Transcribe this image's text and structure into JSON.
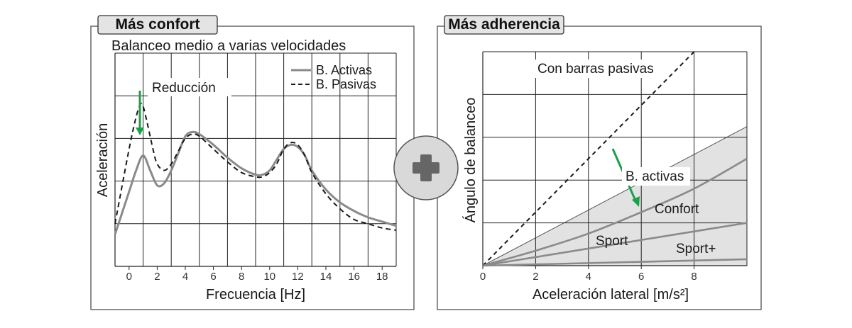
{
  "chart_data": [
    {
      "type": "line",
      "panel_title": "Más confort",
      "title": "Balanceo medio a varias velocidades",
      "xlabel": "Frecuencia [Hz]",
      "ylabel": "Aceleración",
      "xlim": [
        -1,
        19
      ],
      "xticks": [
        "0",
        "2",
        "4",
        "6",
        "8",
        "10",
        "12",
        "14",
        "16",
        "18"
      ],
      "legend": [
        "B. Activas",
        "B. Pasivas"
      ],
      "legend_position": "top-right",
      "annotation": "Reducción",
      "grid": true,
      "series": [
        {
          "name": "B. Activas",
          "color": "#8a8a8a",
          "style": "solid",
          "x": [
            -1,
            0,
            0.5,
            1,
            1.5,
            2,
            2.5,
            3,
            3.5,
            4,
            4.5,
            5,
            6,
            7,
            8,
            9,
            9.5,
            10,
            10.5,
            11,
            11.5,
            12,
            12.5,
            13,
            14,
            15,
            16,
            17,
            18,
            19
          ],
          "y": [
            0.15,
            0.35,
            0.45,
            0.52,
            0.45,
            0.38,
            0.39,
            0.45,
            0.53,
            0.61,
            0.63,
            0.62,
            0.57,
            0.51,
            0.46,
            0.43,
            0.43,
            0.45,
            0.5,
            0.55,
            0.57,
            0.56,
            0.52,
            0.45,
            0.36,
            0.3,
            0.26,
            0.23,
            0.21,
            0.19
          ]
        },
        {
          "name": "B. Pasivas",
          "color": "#1a1a1a",
          "style": "dashed",
          "x": [
            -1,
            0,
            0.5,
            0.8,
            1,
            1.3,
            1.7,
            2,
            2.5,
            3,
            3.5,
            4,
            4.5,
            5,
            6,
            7,
            8,
            9,
            9.5,
            10,
            10.5,
            11,
            11.5,
            12,
            12.5,
            13,
            14,
            15,
            16,
            17,
            18,
            19
          ],
          "y": [
            0.2,
            0.55,
            0.7,
            0.76,
            0.75,
            0.67,
            0.55,
            0.48,
            0.45,
            0.48,
            0.54,
            0.6,
            0.62,
            0.61,
            0.55,
            0.49,
            0.44,
            0.42,
            0.42,
            0.44,
            0.48,
            0.55,
            0.58,
            0.57,
            0.52,
            0.44,
            0.34,
            0.27,
            0.22,
            0.2,
            0.18,
            0.17
          ]
        }
      ]
    },
    {
      "type": "line",
      "panel_title": "Más adherencia",
      "xlabel": "Aceleración lateral [m/s²]",
      "ylabel": "Ángulo de balanceo",
      "xlim": [
        0,
        10
      ],
      "xticks": [
        "0",
        "2",
        "4",
        "6",
        "8"
      ],
      "grid": true,
      "region_label": "B. activas",
      "series": [
        {
          "name": "Con barras pasivas",
          "color": "#1a1a1a",
          "style": "dashed",
          "x": [
            0,
            8
          ],
          "y": [
            0,
            1.0
          ]
        },
        {
          "name": "Confort",
          "color": "#8a8a8a",
          "style": "solid",
          "x": [
            0,
            2,
            4,
            6,
            8,
            10
          ],
          "y": [
            0,
            0.07,
            0.15,
            0.25,
            0.36,
            0.5
          ]
        },
        {
          "name": "Sport",
          "color": "#8a8a8a",
          "style": "solid",
          "x": [
            0,
            2,
            4,
            6,
            8,
            10
          ],
          "y": [
            0,
            0.04,
            0.08,
            0.12,
            0.16,
            0.2
          ]
        },
        {
          "name": "Sport+",
          "color": "#8a8a8a",
          "style": "solid",
          "x": [
            0,
            10
          ],
          "y": [
            0,
            0.03
          ]
        }
      ],
      "band": {
        "upper": {
          "x": [
            0,
            10
          ],
          "y": [
            0,
            0.65
          ]
        },
        "color": "#e2e2e2"
      }
    }
  ],
  "center_icon": "plus-icon"
}
